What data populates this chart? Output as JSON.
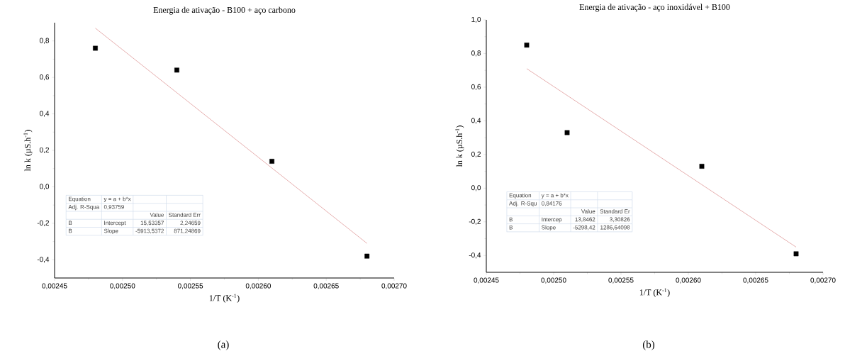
{
  "chart_data": [
    {
      "type": "scatter",
      "title": "Energia de ativação - B100 + aço carbono",
      "xlabel": "1/T (K$^{-1}$)",
      "ylabel": "ln k (µS.h$^{-1}$)",
      "marker": "square",
      "xlim": [
        0.00245,
        0.0027
      ],
      "ylim": [
        -0.5,
        0.9
      ],
      "xticks": [
        {
          "value": 0.00245,
          "label": "0,00245"
        },
        {
          "value": 0.0025,
          "label": "0,00250"
        },
        {
          "value": 0.00255,
          "label": "0,00255"
        },
        {
          "value": 0.0026,
          "label": "0,00260"
        },
        {
          "value": 0.00265,
          "label": "0,00265"
        },
        {
          "value": 0.0027,
          "label": "0,00270"
        }
      ],
      "yticks": [
        {
          "value": -0.4,
          "label": "-0,4"
        },
        {
          "value": -0.2,
          "label": "-0,2"
        },
        {
          "value": 0,
          "label": "0,0"
        },
        {
          "value": 0.2,
          "label": "0,2"
        },
        {
          "value": 0.4,
          "label": "0,4"
        },
        {
          "value": 0.6,
          "label": "0,6"
        },
        {
          "value": 0.8,
          "label": "0,8"
        }
      ],
      "series": [
        {
          "color": "#000000",
          "x": [
            0.00248,
            0.00254,
            0.00261,
            0.00268
          ],
          "values": [
            0.76,
            0.64,
            0.14,
            -0.38
          ]
        },
        {
          "type": "line",
          "marker": "none",
          "line_style": "solid",
          "color": "#e09a9a",
          "x": [
            0.00248,
            0.00268
          ],
          "values": [
            0.87,
            -0.31
          ]
        }
      ],
      "annotations": [
        "Equation",
        "y = a + b*x",
        "Adj. R-Squa",
        "0,93759",
        "Value",
        "Standard Err",
        "B",
        "Intercept",
        "15,53357",
        "2,24659",
        "B",
        "Slope",
        "-5913,5372",
        "871,24869",
        "(a)"
      ]
    },
    {
      "type": "scatter",
      "title": "Energia de ativação - aço inoxidável + B100",
      "xlabel": "1/T (K$^{-1}$)",
      "ylabel": "ln k (µS.h$^{-1}$)",
      "marker": "square",
      "xlim": [
        0.00245,
        0.0027
      ],
      "ylim": [
        -0.5,
        1.0
      ],
      "xticks": [
        {
          "value": 0.00245,
          "label": "0,00245"
        },
        {
          "value": 0.0025,
          "label": "0,00250"
        },
        {
          "value": 0.00255,
          "label": "0,00255"
        },
        {
          "value": 0.0026,
          "label": "0,00260"
        },
        {
          "value": 0.00265,
          "label": "0,00265"
        },
        {
          "value": 0.0027,
          "label": "0,00270"
        }
      ],
      "yticks": [
        {
          "value": -0.4,
          "label": "-0,4"
        },
        {
          "value": -0.2,
          "label": "-0,2"
        },
        {
          "value": 0,
          "label": "0,0"
        },
        {
          "value": 0.2,
          "label": "0,2"
        },
        {
          "value": 0.4,
          "label": "0,4"
        },
        {
          "value": 0.6,
          "label": "0,6"
        },
        {
          "value": 0.8,
          "label": "0,8"
        },
        {
          "value": 1.0,
          "label": "1,0"
        }
      ],
      "series": [
        {
          "color": "#000000",
          "x": [
            0.00248,
            0.00251,
            0.00261,
            0.00268
          ],
          "values": [
            0.85,
            0.33,
            0.13,
            -0.39
          ]
        },
        {
          "type": "line",
          "marker": "none",
          "line_style": "solid",
          "color": "#e09a9a",
          "x": [
            0.00248,
            0.00268
          ],
          "values": [
            0.71,
            -0.35
          ]
        }
      ],
      "annotations": [
        "Equation",
        "y = a + b*x",
        "Adj. R-Squ",
        "0,84176",
        "Value",
        "Standard Er",
        "B",
        "Intercep",
        "13,8462",
        "3,30826",
        "B",
        "Slope",
        "-5298,42",
        "1286,64098",
        "(b)"
      ]
    }
  ]
}
